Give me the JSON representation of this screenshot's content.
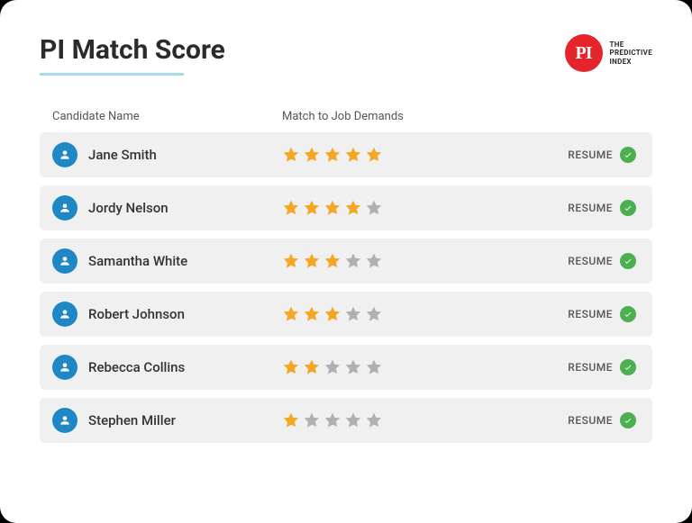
{
  "title": "PI Match Score",
  "brand": {
    "badge": "PI",
    "line1": "THE",
    "line2": "PREDICTIVE",
    "line3": "INDEX"
  },
  "columns": {
    "name": "Candidate Name",
    "match": "Match to Job Demands"
  },
  "resume_label": "RESUME",
  "colors": {
    "card_bg": "#ffffff",
    "row_bg": "#f0f0f0",
    "title_color": "#2b2b2b",
    "underline_color": "#a6dbe8",
    "brand_red": "#e4252c",
    "avatar_bg": "#1f88c4",
    "star_filled": "#f5a623",
    "star_empty": "#b0b0b0",
    "check_green": "#4caf50",
    "text_muted": "#555555"
  },
  "star_max": 5,
  "candidates": [
    {
      "name": "Jane Smith",
      "stars": 5,
      "resume": true
    },
    {
      "name": "Jordy Nelson",
      "stars": 4,
      "resume": true
    },
    {
      "name": "Samantha White",
      "stars": 3,
      "resume": true
    },
    {
      "name": "Robert Johnson",
      "stars": 3,
      "resume": true
    },
    {
      "name": "Rebecca Collins",
      "stars": 2,
      "resume": true
    },
    {
      "name": "Stephen Miller",
      "stars": 1,
      "resume": true
    }
  ]
}
